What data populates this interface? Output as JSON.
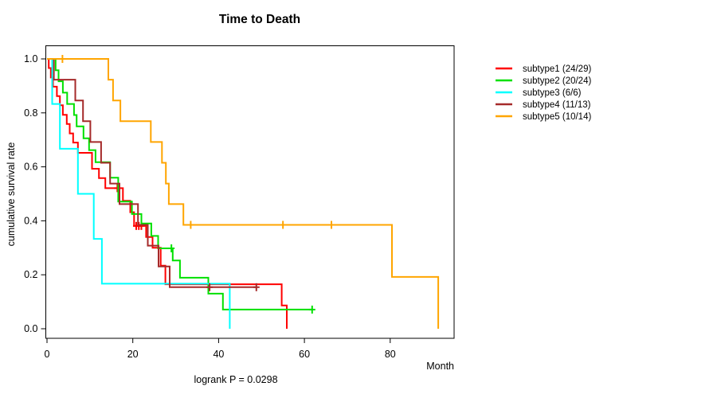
{
  "chart_data": {
    "type": "line",
    "chart_kind": "kaplan-meier-step",
    "title": "Time to Death",
    "xlabel": "Month",
    "ylabel": "cumulative survival rate",
    "footer": "logrank P = 0.0298",
    "x_ticks": [
      0,
      20,
      40,
      60,
      80
    ],
    "y_ticks": [
      "0.0",
      "0.2",
      "0.4",
      "0.6",
      "0.8",
      "1.0"
    ],
    "xlim": [
      0,
      95
    ],
    "ylim": [
      0.0,
      1.0
    ],
    "grid": "off",
    "legend_position": "right-outside",
    "axis_color": "#000000",
    "series": [
      {
        "name": "subtype1 (24/29)",
        "color": "#ff0000",
        "end": 55.9,
        "steps": [
          [
            0,
            1
          ],
          [
            0.4,
            0.966
          ],
          [
            0.9,
            0.931
          ],
          [
            1.4,
            0.897
          ],
          [
            2.3,
            0.862
          ],
          [
            3.0,
            0.828
          ],
          [
            3.7,
            0.793
          ],
          [
            4.6,
            0.759
          ],
          [
            5.3,
            0.724
          ],
          [
            6.1,
            0.69
          ],
          [
            7.2,
            0.652
          ],
          [
            10.5,
            0.593
          ],
          [
            12.1,
            0.558
          ],
          [
            13.6,
            0.521
          ],
          [
            17.7,
            0.474
          ],
          [
            19.4,
            0.432
          ],
          [
            20.3,
            0.381
          ],
          [
            23.1,
            0.34
          ],
          [
            24.6,
            0.3
          ],
          [
            26.5,
            0.234
          ],
          [
            27.6,
            0.165
          ],
          [
            54.7,
            0.086
          ],
          [
            55.9,
            0
          ]
        ],
        "censors": [
          [
            16.4,
            0.521
          ],
          [
            20.8,
            0.381
          ],
          [
            21.4,
            0.381
          ],
          [
            22.0,
            0.381
          ]
        ]
      },
      {
        "name": "subtype2 (20/24)",
        "color": "#00e000",
        "end": 62.0,
        "steps": [
          [
            0,
            1
          ],
          [
            2.0,
            0.958
          ],
          [
            2.7,
            0.917
          ],
          [
            3.7,
            0.875
          ],
          [
            4.7,
            0.833
          ],
          [
            6.3,
            0.792
          ],
          [
            6.9,
            0.75
          ],
          [
            8.5,
            0.706
          ],
          [
            9.8,
            0.662
          ],
          [
            11.3,
            0.617
          ],
          [
            14.7,
            0.56
          ],
          [
            16.6,
            0.471
          ],
          [
            19.8,
            0.425
          ],
          [
            22.0,
            0.39
          ],
          [
            24.3,
            0.344
          ],
          [
            25.9,
            0.298
          ],
          [
            29.3,
            0.253
          ],
          [
            31.0,
            0.189
          ],
          [
            37.6,
            0.13
          ],
          [
            41.0,
            0.071
          ]
        ],
        "censors": [
          [
            29.0,
            0.298
          ],
          [
            61.8,
            0.071
          ]
        ]
      },
      {
        "name": "subtype3 (6/6)",
        "color": "#00ffff",
        "end": 42.6,
        "steps": [
          [
            0,
            1
          ],
          [
            1.2,
            0.833
          ],
          [
            3.0,
            0.667
          ],
          [
            7.2,
            0.5
          ],
          [
            10.9,
            0.333
          ],
          [
            12.8,
            0.167
          ],
          [
            42.6,
            0
          ]
        ],
        "censors": []
      },
      {
        "name": "subtype4 (11/13)",
        "color": "#a52a2a",
        "end": 48.8,
        "steps": [
          [
            0,
            1
          ],
          [
            1.6,
            0.923
          ],
          [
            6.6,
            0.846
          ],
          [
            8.4,
            0.769
          ],
          [
            10.1,
            0.692
          ],
          [
            12.6,
            0.615
          ],
          [
            14.7,
            0.538
          ],
          [
            16.9,
            0.462
          ],
          [
            21.2,
            0.385
          ],
          [
            23.5,
            0.308
          ],
          [
            26.0,
            0.231
          ],
          [
            28.6,
            0.154
          ]
        ],
        "censors": [
          [
            37.9,
            0.154
          ],
          [
            48.8,
            0.154
          ]
        ]
      },
      {
        "name": "subtype5 (10/14)",
        "color": "#ffa500",
        "end": 91.2,
        "steps": [
          [
            0,
            1
          ],
          [
            14.3,
            0.923
          ],
          [
            15.4,
            0.846
          ],
          [
            17.1,
            0.769
          ],
          [
            24.2,
            0.692
          ],
          [
            26.8,
            0.615
          ],
          [
            27.7,
            0.538
          ],
          [
            28.4,
            0.462
          ],
          [
            31.8,
            0.385
          ],
          [
            80.4,
            0.192
          ],
          [
            91.2,
            0
          ]
        ],
        "censors": [
          [
            3.6,
            1.0
          ],
          [
            33.5,
            0.385
          ],
          [
            55.0,
            0.385
          ],
          [
            66.3,
            0.385
          ]
        ]
      }
    ]
  }
}
